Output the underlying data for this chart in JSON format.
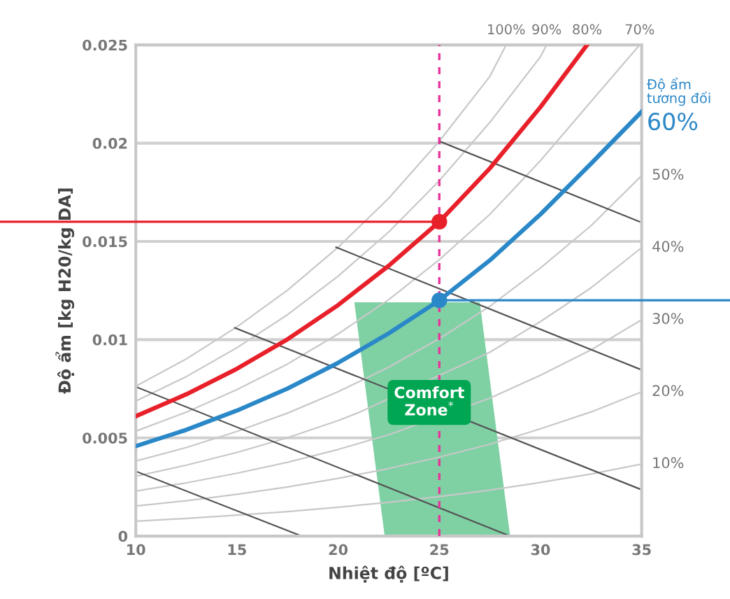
{
  "chart_data": {
    "type": "line",
    "xlabel": "Nhiệt độ [ºC]",
    "ylabel": "Độ ẩm [kg H20/kg DA]",
    "xlim": [
      10,
      35
    ],
    "ylim": [
      0,
      0.025
    ],
    "xticks": [
      10,
      15,
      20,
      25,
      30,
      35
    ],
    "yticks": [
      0,
      0.005,
      0.01,
      0.015,
      0.02,
      0.025
    ],
    "grid": "y",
    "series": [
      {
        "name": "10%",
        "color": "#c8c8c8",
        "x": [
          10,
          12.5,
          15,
          17.5,
          20,
          22.5,
          25,
          27.5,
          30,
          32.5,
          35
        ],
        "values": [
          0.00076,
          0.0009,
          0.00107,
          0.00125,
          0.00147,
          0.00172,
          0.00201,
          0.00234,
          0.00273,
          0.00316,
          0.00367
        ]
      },
      {
        "name": "20%",
        "color": "#c8c8c8",
        "x": [
          10,
          12.5,
          15,
          17.5,
          20,
          22.5,
          25,
          27.5,
          30,
          32.5,
          35
        ],
        "values": [
          0.00153,
          0.0018,
          0.00213,
          0.0025,
          0.00294,
          0.00344,
          0.00402,
          0.00468,
          0.00546,
          0.00632,
          0.00734
        ]
      },
      {
        "name": "30%",
        "color": "#c8c8c8",
        "x": [
          10,
          12.5,
          15,
          17.5,
          20,
          22.5,
          27.5,
          30,
          32.5,
          35
        ],
        "values": [
          0.00229,
          0.00271,
          0.0032,
          0.00376,
          0.00441,
          0.00516,
          0.00702,
          0.00819,
          0.00948,
          0.01101
        ]
      },
      {
        "name": "40%",
        "color": "#c8c8c8",
        "x": [
          10,
          12.5,
          15,
          17.5,
          20,
          21,
          27.5,
          30,
          32.5,
          35
        ],
        "values": [
          0.00305,
          0.00361,
          0.00426,
          0.00501,
          0.00588,
          0.00628,
          0.00936,
          0.01092,
          0.01264,
          0.01468
        ]
      },
      {
        "name": "50%",
        "color": "#c8c8c8",
        "x": [
          10,
          12.5,
          15,
          17.5,
          20,
          22.5,
          25,
          27.5,
          30,
          32.5,
          35
        ],
        "values": [
          0.00382,
          0.00451,
          0.00533,
          0.00626,
          0.00735,
          0.0086,
          0.01005,
          0.0117,
          0.01365,
          0.0158,
          0.01835
        ]
      },
      {
        "name": "70%",
        "color": "#c8c8c8",
        "x": [
          10,
          12.5,
          15,
          17.5,
          20,
          22.5,
          25,
          27.5,
          30,
          32.5,
          34.9
        ],
        "values": [
          0.00534,
          0.00631,
          0.00746,
          0.00876,
          0.01029,
          0.01204,
          0.01407,
          0.01638,
          0.01911,
          0.02212,
          0.025
        ]
      },
      {
        "name": "90%",
        "color": "#c8c8c8",
        "x": [
          10,
          12.5,
          15,
          17.5,
          20,
          22.5,
          25,
          27.5,
          30,
          30.3
        ],
        "values": [
          0.00687,
          0.00812,
          0.00959,
          0.01127,
          0.01323,
          0.01548,
          0.01809,
          0.02106,
          0.0244,
          0.025
        ]
      },
      {
        "name": "100%",
        "color": "#c8c8c8",
        "x": [
          10,
          12.5,
          15,
          17.5,
          20,
          22.5,
          25,
          27.5,
          28.3
        ],
        "values": [
          0.00763,
          0.00902,
          0.01065,
          0.01252,
          0.0147,
          0.0172,
          0.0201,
          0.0234,
          0.025
        ]
      },
      {
        "color": "#555555",
        "x": [
          25,
          34.9
        ],
        "values": [
          0.0201,
          0.016
        ]
      },
      {
        "color": "#555555",
        "x": [
          19.9,
          34.9
        ],
        "values": [
          0.0147,
          0.0085
        ]
      },
      {
        "color": "#555555",
        "x": [
          14.9,
          34.9
        ],
        "values": [
          0.0106,
          0.0024
        ]
      },
      {
        "color": "#555555",
        "x": [
          10,
          28.5
        ],
        "values": [
          0.0076,
          0
        ]
      },
      {
        "color": "#555555",
        "x": [
          10,
          18.2
        ],
        "values": [
          0.0033,
          0
        ]
      },
      {
        "type": "area",
        "color": "#7fd1a4",
        "x": [
          20.8,
          27.0,
          28.5,
          22.3
        ],
        "values": [
          0.0119,
          0.0119,
          0,
          0
        ]
      },
      {
        "name": "80%",
        "color": "#e8202a",
        "x": [
          10,
          12.5,
          15,
          17.5,
          20,
          22.5,
          25,
          27.5,
          30,
          32.3
        ],
        "values": [
          0.0061,
          0.00722,
          0.00852,
          0.01002,
          0.01176,
          0.01376,
          0.016,
          0.01872,
          0.02184,
          0.025
        ]
      },
      {
        "name": "60%",
        "color": "#2b88c8",
        "x": [
          10,
          12.5,
          15,
          17.5,
          20,
          22.5,
          25,
          27.5,
          30,
          32.5,
          35
        ],
        "values": [
          0.00458,
          0.00541,
          0.00639,
          0.00751,
          0.00882,
          0.01032,
          0.012,
          0.01404,
          0.01638,
          0.01896,
          0.0216
        ]
      },
      {
        "type": "scatter",
        "color": "#e8202a",
        "x": [
          25
        ],
        "values": [
          0.016
        ]
      },
      {
        "type": "scatter",
        "color": "#2b88c8",
        "x": [
          25
        ],
        "values": [
          0.012
        ]
      }
    ],
    "ref_lines": [
      {
        "axis": "x",
        "value": 25,
        "color": "#e8349a",
        "line_style": "dashed"
      },
      {
        "axis": "y",
        "value": 0.016,
        "color": "#e8202a"
      },
      {
        "axis": "y",
        "value": 0.012,
        "color": "#2b88c8"
      }
    ],
    "annotations": [
      "Độ ẩm\ntương đối",
      {
        "text": "Comfort\nZone$^{*}$",
        "x": 24.5,
        "y": 0.0068
      }
    ]
  }
}
